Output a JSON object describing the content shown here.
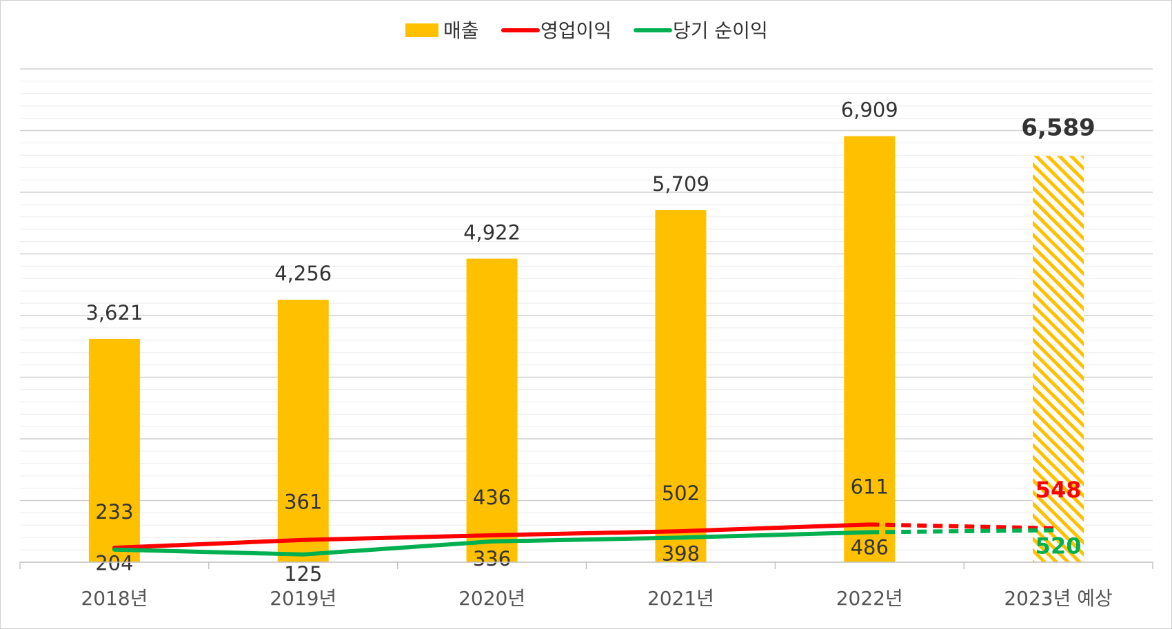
{
  "chart_data": {
    "type": "bar",
    "categories": [
      "2018년",
      "2019년",
      "2020년",
      "2021년",
      "2022년",
      "2023년 예상"
    ],
    "ylim": [
      0,
      8000
    ],
    "grid": true,
    "legend_position": "top",
    "series": [
      {
        "name": "매출",
        "kind": "bar",
        "values": [
          3621,
          4256,
          4922,
          5709,
          6909,
          6589
        ],
        "labels": [
          "3,621",
          "4,256",
          "4,922",
          "5,709",
          "6,909",
          "6,589"
        ],
        "color": "#FFC000",
        "forecast_last": true
      },
      {
        "name": "영업이익",
        "kind": "line",
        "values": [
          233,
          361,
          436,
          502,
          611,
          548
        ],
        "labels": [
          "233",
          "361",
          "436",
          "502",
          "611",
          "548"
        ],
        "color": "#FF0000",
        "forecast_last": true
      },
      {
        "name": "당기 순이익",
        "kind": "line",
        "values": [
          204,
          125,
          336,
          398,
          486,
          520
        ],
        "labels": [
          "204",
          "125",
          "336",
          "398",
          "486",
          "520"
        ],
        "color": "#00B050",
        "forecast_last": true
      }
    ]
  }
}
